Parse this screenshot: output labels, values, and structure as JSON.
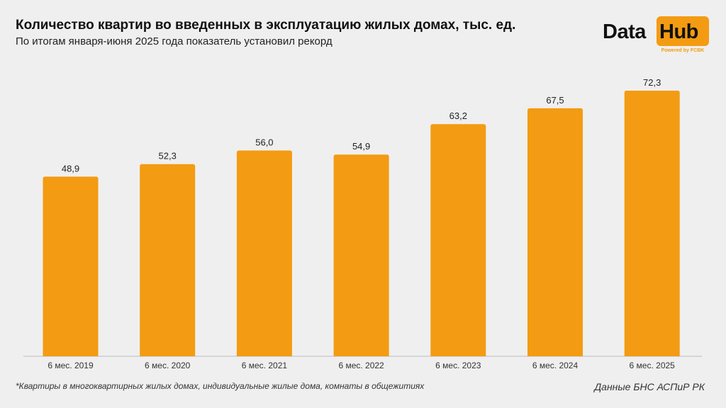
{
  "header": {
    "title": "Количество квартир во введенных в эксплуатацию жилых домах, тыс. ед.",
    "subtitle": "По итогам января-июня 2025 года показатель установил рекорд"
  },
  "logo": {
    "word1": "Data",
    "word2": "Hub",
    "powered": "Powered by FCBK",
    "accent": "#f39b12"
  },
  "chart_data": {
    "type": "bar",
    "categories": [
      "6 мес. 2019",
      "6 мес. 2020",
      "6 мес. 2021",
      "6 мес. 2022",
      "6 мес. 2023",
      "6 мес. 2024",
      "6 мес. 2025"
    ],
    "values": [
      48.9,
      52.3,
      56.0,
      54.9,
      63.2,
      67.5,
      72.3
    ],
    "value_labels": [
      "48,9",
      "52,3",
      "56,0",
      "54,9",
      "63,2",
      "67,5",
      "72,3"
    ],
    "bar_color": "#f39b12",
    "ylim": [
      0,
      80
    ],
    "grid": false,
    "legend": "none"
  },
  "footer": {
    "footnote": "*Квартиры в многоквартирных жилых домах, индивидуальные жилые дома, комнаты в общежитиях",
    "source": "Данные БНС АСПиР РК"
  }
}
